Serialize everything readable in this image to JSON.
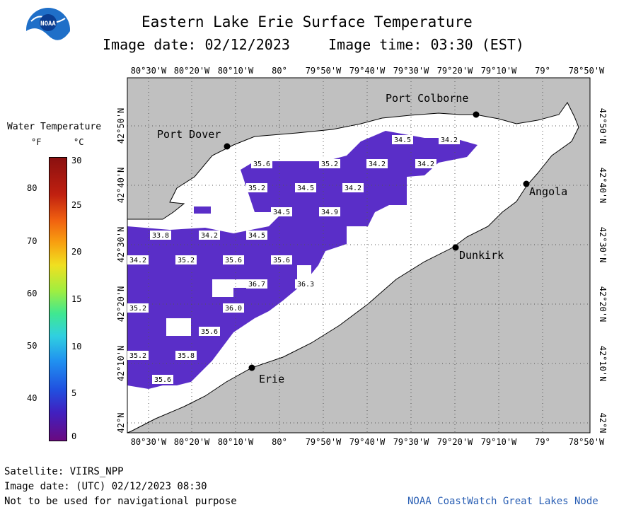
{
  "header": {
    "title": "Eastern Lake Erie Surface Temperature",
    "image_date_label": "Image date: 02/12/2023",
    "image_time_label": "Image time: 03:30 (EST)"
  },
  "logo": {
    "text": "NOAA"
  },
  "legend": {
    "title": "Water Temperature",
    "unit_f": "°F",
    "unit_c": "°C",
    "f_ticks": [
      "80",
      "70",
      "60",
      "50",
      "40"
    ],
    "c_ticks": [
      "30",
      "25",
      "20",
      "15",
      "10",
      "5",
      "0"
    ]
  },
  "map": {
    "lon_labels": [
      "80°30'W",
      "80°20'W",
      "80°10'W",
      "80°",
      "79°50'W",
      "79°40'W",
      "79°30'W",
      "79°20'W",
      "79°10'W",
      "79°",
      "78°50'W"
    ],
    "lat_labels": [
      "42°50'N",
      "42°40'N",
      "42°30'N",
      "42°20'N",
      "42°10'N",
      "42°N"
    ],
    "cities": [
      {
        "name": "Port Colborne"
      },
      {
        "name": "Port Dover"
      },
      {
        "name": "Angola"
      },
      {
        "name": "Dunkirk"
      },
      {
        "name": "Erie"
      }
    ],
    "temp_labels": [
      "34.5",
      "34.2",
      "35.6",
      "35.2",
      "34.2",
      "34.2",
      "35.2",
      "34.5",
      "34.2",
      "34.5",
      "34.9",
      "33.8",
      "34.2",
      "34.5",
      "34.2",
      "35.2",
      "35.6",
      "35.6",
      "36.7",
      "36.3",
      "35.2",
      "36.0",
      "35.6",
      "35.2",
      "35.8",
      "35.6"
    ]
  },
  "footer": {
    "satellite": "Satellite: VIIRS_NPP",
    "utc_date": "Image date: (UTC) 02/12/2023  08:30",
    "disclaimer": "Not to be used for navigational purpose",
    "credit": "NOAA CoastWatch Great Lakes Node"
  },
  "colors": {
    "land": "#c0c0c0",
    "water": "#ffffff",
    "cold_water": "#5a2ec8"
  }
}
